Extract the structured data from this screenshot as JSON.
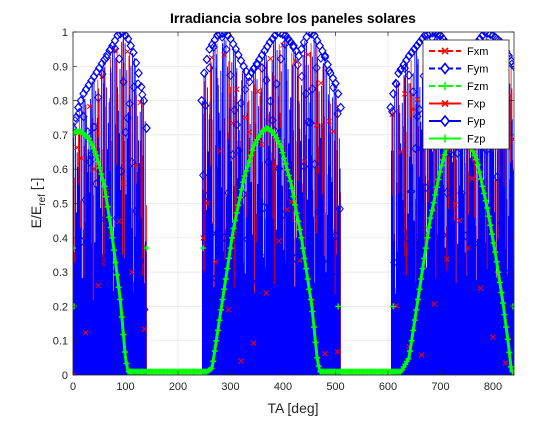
{
  "chart_data": {
    "type": "line",
    "title": "Irradiancia sobre los paneles solares",
    "xlabel": "TA [deg]",
    "ylabel_main": "E/E",
    "ylabel_sub": "ref",
    "ylabel_unit": "[-]",
    "xlim": [
      0,
      840
    ],
    "ylim": [
      0,
      1
    ],
    "xticks": [
      "0",
      "100",
      "200",
      "300",
      "400",
      "500",
      "600",
      "700",
      "800"
    ],
    "yticks": [
      "0",
      "0.1",
      "0.2",
      "0.3",
      "0.4",
      "0.5",
      "0.6",
      "0.7",
      "0.8",
      "0.9",
      "1"
    ],
    "grid": true,
    "legend_position": "top-right",
    "series": [
      {
        "name": "Fxm",
        "color": "#ff0000",
        "line": "dashed",
        "marker": "x"
      },
      {
        "name": "Fym",
        "color": "#0000ff",
        "line": "dashed",
        "marker": "diamond"
      },
      {
        "name": "Fzm",
        "color": "#00ff00",
        "line": "dashed",
        "marker": "plus"
      },
      {
        "name": "Fxp",
        "color": "#ff0000",
        "line": "solid",
        "marker": "x"
      },
      {
        "name": "Fyp",
        "color": "#0000ff",
        "line": "solid",
        "marker": "diamond"
      },
      {
        "name": "Fzp",
        "color": "#00ff00",
        "line": "solid",
        "marker": "plus"
      }
    ],
    "fzp_curve": {
      "x": [
        0,
        5,
        15,
        30,
        45,
        60,
        75,
        90,
        100,
        105,
        250,
        255,
        265,
        285,
        305,
        325,
        345,
        360,
        370,
        380,
        395,
        415,
        435,
        455,
        465,
        470,
        615,
        620,
        625,
        640,
        660,
        680,
        700,
        715,
        725,
        735,
        750,
        770,
        790,
        805,
        820,
        830,
        835
      ],
      "y": [
        0.7,
        0.71,
        0.71,
        0.69,
        0.64,
        0.55,
        0.4,
        0.22,
        0.05,
        0.01,
        0.01,
        0.01,
        0.02,
        0.22,
        0.42,
        0.57,
        0.67,
        0.71,
        0.72,
        0.71,
        0.67,
        0.56,
        0.4,
        0.2,
        0.05,
        0.01,
        0.01,
        0.01,
        0.01,
        0.05,
        0.25,
        0.45,
        0.6,
        0.68,
        0.71,
        0.72,
        0.7,
        0.62,
        0.48,
        0.35,
        0.2,
        0.08,
        0.01
      ]
    },
    "blue_envelope": {
      "x": [
        0,
        10,
        20,
        40,
        60,
        75,
        85,
        95,
        105,
        115,
        125,
        135,
        140,
        245,
        250,
        255,
        260,
        275,
        290,
        300,
        310,
        325,
        335,
        355,
        375,
        390,
        405,
        420,
        430,
        440,
        450,
        460,
        470,
        480,
        490,
        500,
        505,
        510,
        605,
        610,
        620,
        640,
        655,
        670,
        690,
        700,
        715,
        735,
        755,
        770,
        785,
        800,
        815,
        830,
        840
      ],
      "y": [
        0.72,
        0.78,
        0.82,
        0.87,
        0.92,
        0.96,
        0.99,
        1.0,
        0.98,
        0.94,
        0.88,
        0.8,
        0.72,
        0.8,
        0.88,
        0.92,
        0.95,
        0.99,
        1.0,
        0.98,
        0.95,
        0.9,
        0.87,
        0.92,
        0.97,
        1.0,
        0.99,
        0.96,
        0.93,
        0.97,
        1.0,
        0.99,
        0.96,
        0.93,
        0.88,
        0.85,
        0.82,
        0.78,
        0.78,
        0.82,
        0.88,
        0.93,
        0.96,
        0.99,
        1.0,
        0.99,
        0.96,
        0.93,
        0.93,
        0.97,
        1.0,
        0.99,
        0.97,
        0.93,
        0.9
      ]
    },
    "active_ranges": [
      [
        0,
        140
      ],
      [
        245,
        510
      ],
      [
        605,
        840
      ]
    ]
  }
}
